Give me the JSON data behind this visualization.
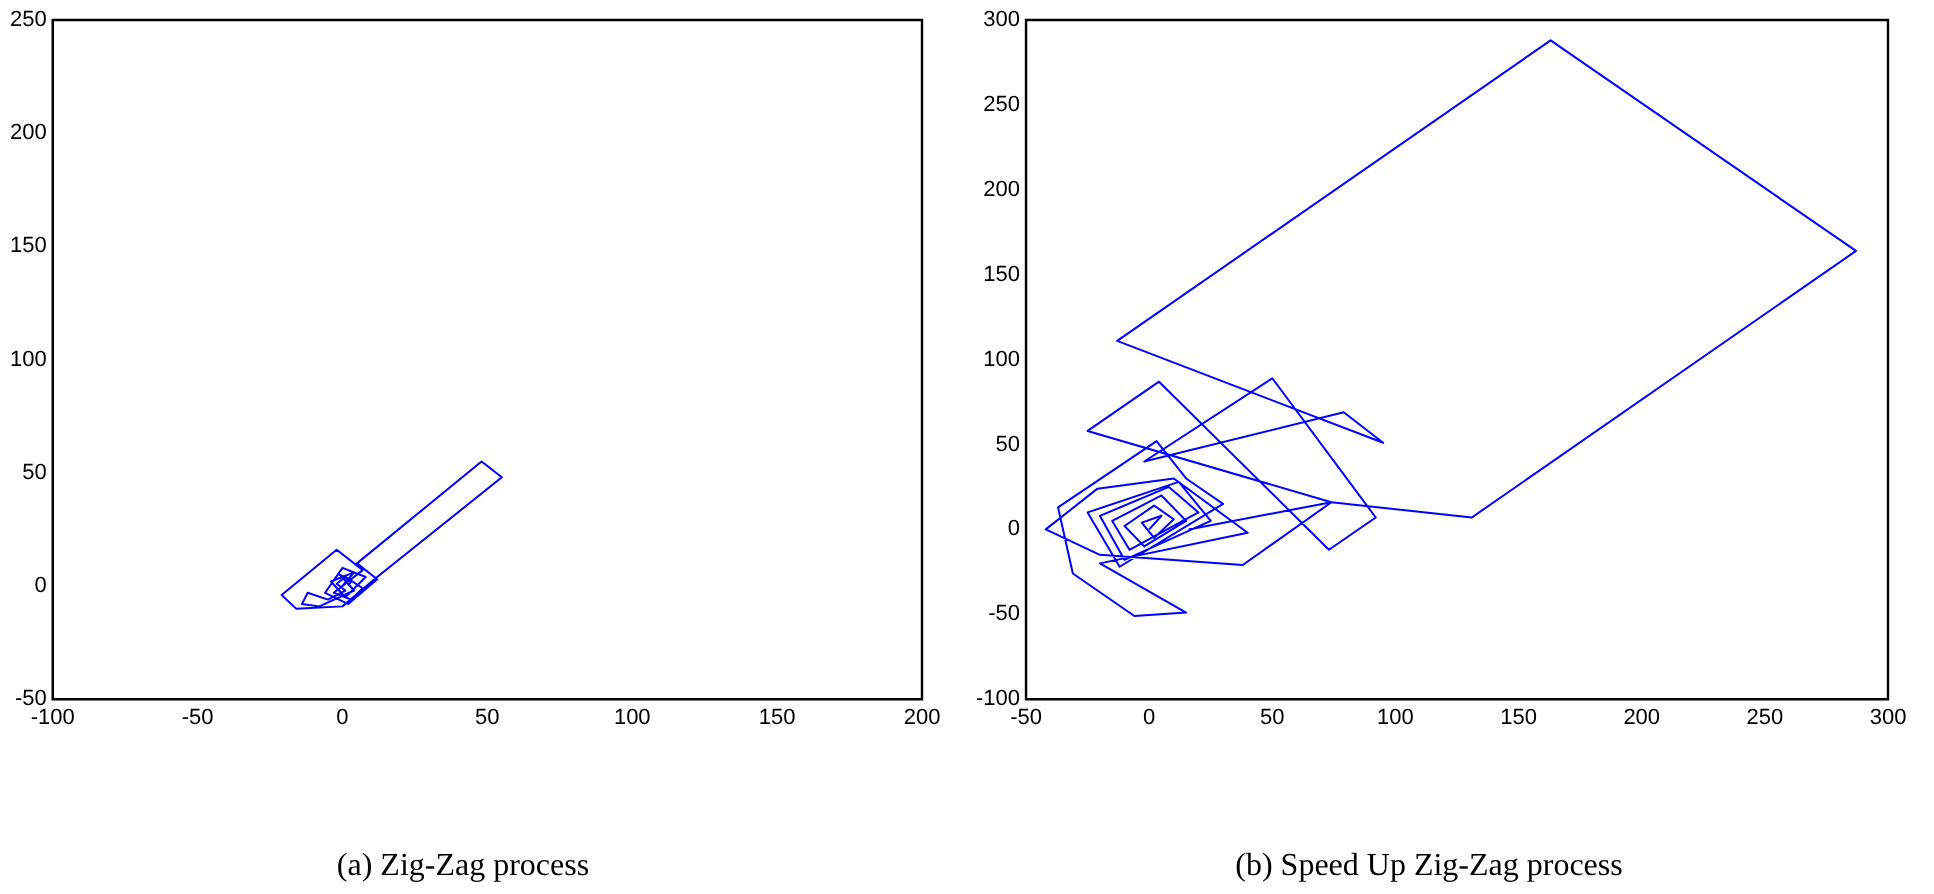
{
  "chart_data": [
    {
      "type": "line",
      "title": "(a) Zig-Zag process",
      "xlim": [
        -100,
        200
      ],
      "ylim": [
        -50,
        250
      ],
      "xticks": [
        -100,
        -50,
        0,
        50,
        100,
        150,
        200
      ],
      "yticks": [
        -50,
        0,
        50,
        100,
        150,
        200,
        250
      ],
      "grid": false,
      "legend": false,
      "series": [
        {
          "color": "#0000ff",
          "x": [
            0,
            4,
            -4,
            1,
            8,
            0,
            -6,
            2,
            12,
            5,
            48,
            55,
            11,
            0,
            -16,
            -21,
            -2,
            7,
            -3,
            3,
            7,
            1,
            -2,
            1,
            -5,
            -12,
            -14,
            -8,
            4,
            -1,
            3,
            2
          ],
          "values": [
            0,
            6,
            2,
            -5,
            4,
            8,
            -3,
            -8,
            3,
            10,
            55,
            48,
            3,
            -9,
            -10,
            -4,
            16,
            7,
            -3,
            -6,
            -1,
            4,
            1,
            -2,
            -6,
            -3,
            -8,
            -9,
            -2,
            5,
            2,
            0
          ]
        }
      ]
    },
    {
      "type": "line",
      "title": "(b) Speed Up Zig-Zag process",
      "xlim": [
        -50,
        300
      ],
      "ylim": [
        -100,
        300
      ],
      "xticks": [
        -50,
        0,
        50,
        100,
        150,
        200,
        250,
        300
      ],
      "yticks": [
        -100,
        -50,
        0,
        50,
        100,
        150,
        200,
        250,
        300
      ],
      "grid": false,
      "legend": false,
      "series": [
        {
          "color": "#0000ff",
          "x": [
            0,
            5,
            -3,
            2,
            10,
            2,
            -10,
            -2,
            15,
            5,
            -15,
            -8,
            20,
            8,
            -20,
            -10,
            25,
            12,
            -25,
            -12,
            30,
            15,
            3,
            -37,
            -31,
            -6,
            15,
            -20,
            40,
            10,
            -21,
            -42,
            -20,
            38,
            74,
            -25,
            4,
            73,
            92,
            50,
            -2,
            79,
            95,
            -13,
            163,
            287,
            131,
            74,
            16
          ],
          "values": [
            0,
            8,
            4,
            -5,
            6,
            14,
            2,
            -10,
            5,
            20,
            5,
            -12,
            10,
            25,
            8,
            -18,
            5,
            28,
            10,
            -22,
            15,
            30,
            52,
            13,
            -26,
            -51,
            -49,
            -20,
            -2,
            30,
            24,
            0,
            -15,
            -21,
            16,
            58,
            87,
            -12,
            7,
            89,
            40,
            69,
            51,
            111,
            288,
            164,
            7,
            16,
            0
          ]
        }
      ]
    }
  ]
}
